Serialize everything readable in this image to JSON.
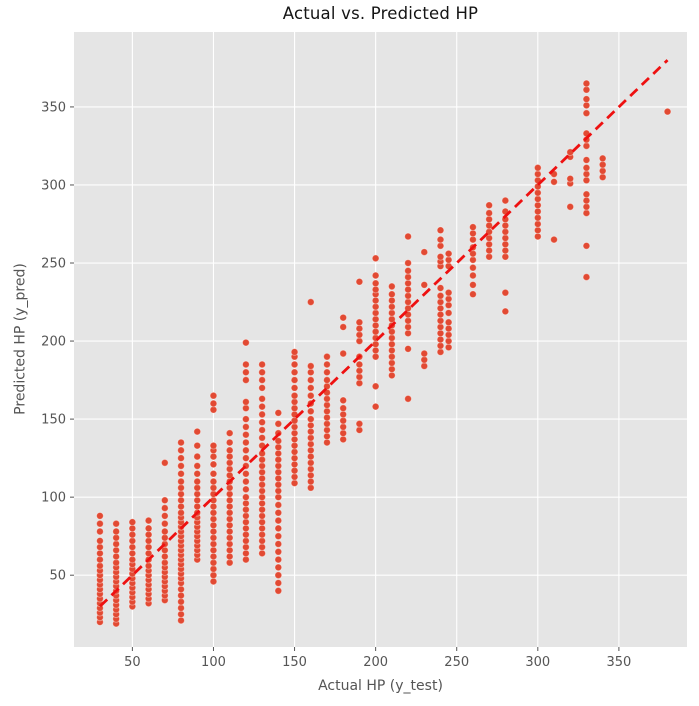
{
  "chart_data": {
    "type": "scatter",
    "title": "Actual vs. Predicted HP",
    "xlabel": "Actual HP (y_test)",
    "ylabel": "Predicted HP (y_pred)",
    "xlim": [
      14,
      392
    ],
    "ylim": [
      4,
      398
    ],
    "x_ticks": [
      50,
      100,
      150,
      200,
      250,
      300,
      350
    ],
    "y_ticks": [
      50,
      100,
      150,
      200,
      250,
      300,
      350
    ],
    "grid": true,
    "legend": false,
    "identity_line": {
      "x1": 30,
      "y1": 30,
      "x2": 380,
      "y2": 380,
      "style": "dashed"
    },
    "columns": [
      {
        "x": 30,
        "ys": [
          20,
          23,
          26,
          29,
          32,
          35,
          38,
          41,
          44,
          47,
          50,
          53,
          56,
          60,
          64,
          68,
          72,
          78,
          83,
          88
        ]
      },
      {
        "x": 40,
        "ys": [
          19,
          22,
          25,
          28,
          31,
          34,
          37,
          40,
          43,
          46,
          49,
          52,
          55,
          58,
          62,
          66,
          70,
          74,
          78,
          83
        ]
      },
      {
        "x": 50,
        "ys": [
          30,
          33,
          36,
          39,
          42,
          45,
          48,
          51,
          54,
          57,
          60,
          64,
          68,
          72,
          76,
          80,
          84
        ]
      },
      {
        "x": 60,
        "ys": [
          32,
          35,
          38,
          41,
          44,
          47,
          50,
          53,
          56,
          60,
          64,
          68,
          72,
          76,
          80,
          85
        ]
      },
      {
        "x": 70,
        "ys": [
          34,
          37,
          40,
          43,
          46,
          49,
          52,
          55,
          58,
          62,
          66,
          70,
          74,
          78,
          83,
          88,
          93,
          98,
          122
        ]
      },
      {
        "x": 80,
        "ys": [
          21,
          25,
          29,
          33,
          37,
          41,
          45,
          48,
          51,
          54,
          57,
          60,
          63,
          66,
          69,
          72,
          75,
          78,
          81,
          84,
          87,
          90,
          94,
          98,
          102,
          106,
          110,
          115,
          120,
          125,
          130,
          135
        ]
      },
      {
        "x": 90,
        "ys": [
          60,
          63,
          66,
          69,
          72,
          75,
          78,
          81,
          84,
          87,
          90,
          94,
          98,
          102,
          106,
          110,
          115,
          120,
          126,
          133,
          142
        ]
      },
      {
        "x": 100,
        "ys": [
          46,
          50,
          54,
          58,
          62,
          66,
          70,
          74,
          78,
          82,
          86,
          90,
          94,
          98,
          102,
          106,
          110,
          115,
          121,
          126,
          130,
          133,
          156,
          160,
          165
        ]
      },
      {
        "x": 110,
        "ys": [
          58,
          62,
          66,
          70,
          74,
          78,
          82,
          86,
          90,
          94,
          98,
          102,
          106,
          110,
          114,
          118,
          122,
          126,
          130,
          135,
          141
        ]
      },
      {
        "x": 120,
        "ys": [
          60,
          64,
          68,
          72,
          76,
          80,
          84,
          88,
          92,
          96,
          100,
          105,
          110,
          115,
          120,
          125,
          130,
          135,
          140,
          145,
          150,
          157,
          161,
          175,
          180,
          185,
          199
        ]
      },
      {
        "x": 130,
        "ys": [
          64,
          68,
          72,
          76,
          80,
          84,
          88,
          92,
          96,
          100,
          104,
          108,
          112,
          116,
          120,
          124,
          128,
          133,
          138,
          143,
          148,
          153,
          158,
          163,
          170,
          175,
          180,
          185
        ]
      },
      {
        "x": 140,
        "ys": [
          40,
          45,
          50,
          55,
          60,
          65,
          70,
          75,
          80,
          85,
          90,
          95,
          100,
          104,
          108,
          112,
          116,
          120,
          124,
          128,
          132,
          136,
          141,
          147,
          154
        ]
      },
      {
        "x": 150,
        "ys": [
          109,
          113,
          117,
          121,
          125,
          129,
          133,
          137,
          141,
          145,
          149,
          153,
          157,
          161,
          165,
          170,
          175,
          180,
          185,
          190,
          193
        ]
      },
      {
        "x": 160,
        "ys": [
          106,
          110,
          114,
          118,
          122,
          126,
          130,
          134,
          138,
          142,
          146,
          150,
          155,
          160,
          165,
          170,
          175,
          180,
          184,
          225
        ]
      },
      {
        "x": 170,
        "ys": [
          135,
          139,
          143,
          147,
          151,
          155,
          159,
          163,
          167,
          171,
          175,
          180,
          185,
          190
        ]
      },
      {
        "x": 180,
        "ys": [
          137,
          141,
          145,
          149,
          153,
          157,
          162,
          192,
          209,
          215
        ]
      },
      {
        "x": 190,
        "ys": [
          143,
          147,
          173,
          177,
          181,
          185,
          190,
          200,
          204,
          208,
          212,
          238
        ]
      },
      {
        "x": 200,
        "ys": [
          158,
          171,
          190,
          194,
          198,
          202,
          206,
          210,
          214,
          218,
          222,
          226,
          230,
          233,
          237,
          242,
          253
        ]
      },
      {
        "x": 210,
        "ys": [
          178,
          182,
          186,
          190,
          194,
          198,
          202,
          206,
          210,
          214,
          218,
          222,
          226,
          230,
          235
        ]
      },
      {
        "x": 220,
        "ys": [
          163,
          195,
          205,
          209,
          213,
          217,
          221,
          225,
          229,
          233,
          237,
          241,
          245,
          250,
          267
        ]
      },
      {
        "x": 230,
        "ys": [
          184,
          188,
          192,
          236,
          257
        ]
      },
      {
        "x": 240,
        "ys": [
          193,
          197,
          201,
          205,
          209,
          213,
          217,
          221,
          225,
          229,
          234,
          248,
          251,
          254,
          261,
          265,
          271
        ]
      },
      {
        "x": 245,
        "ys": [
          196,
          200,
          204,
          208,
          212,
          218,
          223,
          227,
          231,
          248,
          252,
          256
        ]
      },
      {
        "x": 260,
        "ys": [
          230,
          236,
          242,
          247,
          252,
          256,
          260,
          265,
          269,
          273
        ]
      },
      {
        "x": 270,
        "ys": [
          254,
          258,
          262,
          266,
          270,
          274,
          278,
          282,
          287
        ]
      },
      {
        "x": 280,
        "ys": [
          219,
          231,
          254,
          258,
          262,
          266,
          270,
          274,
          278,
          283,
          290
        ]
      },
      {
        "x": 300,
        "ys": [
          267,
          271,
          275,
          279,
          283,
          287,
          291,
          295,
          299,
          303,
          307,
          311
        ]
      },
      {
        "x": 310,
        "ys": [
          265,
          302,
          307
        ]
      },
      {
        "x": 320,
        "ys": [
          286,
          301,
          304,
          318,
          321
        ]
      },
      {
        "x": 330,
        "ys": [
          241,
          261,
          282,
          286,
          290,
          294,
          303,
          307,
          311,
          316,
          325,
          329,
          333,
          346,
          351,
          355,
          361,
          365
        ]
      },
      {
        "x": 340,
        "ys": [
          305,
          309,
          313,
          317
        ]
      },
      {
        "x": 380,
        "ys": [
          347
        ]
      }
    ],
    "colors": {
      "point": "#E24A33",
      "line": "#EE1111",
      "plot_bg": "#E5E5E5",
      "grid": "#FFFFFF",
      "tick_text": "#555555",
      "label_text": "#555555",
      "title_text": "#141414",
      "fig_bg": "#FFFFFF"
    }
  }
}
